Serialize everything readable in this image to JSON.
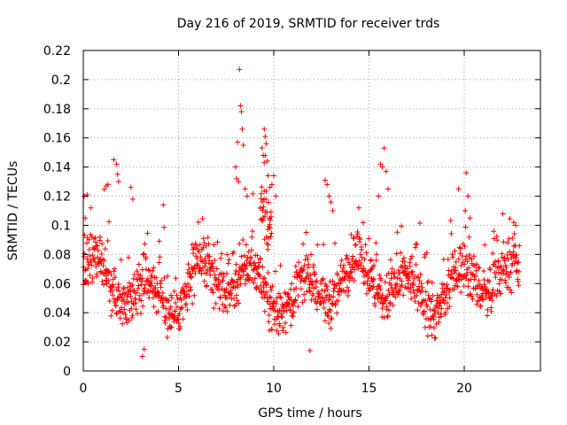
{
  "chart_data": {
    "type": "scatter",
    "title": "Day 216 of 2019, SRMTID for receiver trds",
    "xlabel": "GPS time / hours",
    "ylabel": "SRMTID / TECUs",
    "xlim": [
      0,
      24
    ],
    "ylim": [
      0,
      0.22
    ],
    "x_ticks": [
      0,
      5,
      10,
      15,
      20
    ],
    "x_tick_labels": [
      "0",
      "5",
      "10",
      "15",
      "20"
    ],
    "y_ticks": [
      0,
      0.02,
      0.04,
      0.06,
      0.08,
      0.1,
      0.12,
      0.14,
      0.16,
      0.18,
      0.2,
      0.22
    ],
    "y_tick_labels": [
      "0",
      "0.02",
      "0.04",
      "0.06",
      "0.08",
      "0.1",
      "0.12",
      "0.14",
      "0.16",
      "0.18",
      "0.2",
      "0.22"
    ],
    "grid": true,
    "marker": "+",
    "color": "#ff0000",
    "x_step_hours": 0.0167,
    "series": [
      {
        "name": "SRMTID",
        "segments": [
          {
            "x_start": 0.0,
            "x_end": 22.9,
            "mean": 0.058,
            "spread": 0.03
          },
          {
            "x_start": 9.3,
            "x_end": 9.9,
            "mean": 0.11,
            "spread": 0.03
          }
        ],
        "points": [
          {
            "x": 0.05,
            "y": 0.12
          },
          {
            "x": 0.1,
            "y": 0.105
          },
          {
            "x": 0.2,
            "y": 0.121
          },
          {
            "x": 1.6,
            "y": 0.145
          },
          {
            "x": 1.75,
            "y": 0.142
          },
          {
            "x": 1.8,
            "y": 0.135
          },
          {
            "x": 1.85,
            "y": 0.13
          },
          {
            "x": 1.2,
            "y": 0.127
          },
          {
            "x": 1.3,
            "y": 0.128
          },
          {
            "x": 2.5,
            "y": 0.126
          },
          {
            "x": 2.6,
            "y": 0.118
          },
          {
            "x": 3.1,
            "y": 0.01
          },
          {
            "x": 3.2,
            "y": 0.015
          },
          {
            "x": 4.2,
            "y": 0.114
          },
          {
            "x": 8.2,
            "y": 0.207
          },
          {
            "x": 8.25,
            "y": 0.182
          },
          {
            "x": 8.3,
            "y": 0.178
          },
          {
            "x": 8.35,
            "y": 0.166
          },
          {
            "x": 8.4,
            "y": 0.155
          },
          {
            "x": 8.1,
            "y": 0.157
          },
          {
            "x": 8.0,
            "y": 0.14
          },
          {
            "x": 8.05,
            "y": 0.132
          },
          {
            "x": 8.15,
            "y": 0.13
          },
          {
            "x": 8.5,
            "y": 0.125
          },
          {
            "x": 8.6,
            "y": 0.12
          },
          {
            "x": 9.5,
            "y": 0.166
          },
          {
            "x": 9.55,
            "y": 0.161
          },
          {
            "x": 9.6,
            "y": 0.156
          },
          {
            "x": 9.45,
            "y": 0.148
          },
          {
            "x": 9.5,
            "y": 0.143
          },
          {
            "x": 9.7,
            "y": 0.134
          },
          {
            "x": 9.8,
            "y": 0.126
          },
          {
            "x": 9.9,
            "y": 0.128
          },
          {
            "x": 10.0,
            "y": 0.134
          },
          {
            "x": 10.1,
            "y": 0.12
          },
          {
            "x": 9.3,
            "y": 0.112
          },
          {
            "x": 11.9,
            "y": 0.014
          },
          {
            "x": 12.7,
            "y": 0.131
          },
          {
            "x": 12.8,
            "y": 0.128
          },
          {
            "x": 12.9,
            "y": 0.12
          },
          {
            "x": 13.0,
            "y": 0.116
          },
          {
            "x": 13.1,
            "y": 0.11
          },
          {
            "x": 15.6,
            "y": 0.142
          },
          {
            "x": 15.7,
            "y": 0.14
          },
          {
            "x": 15.8,
            "y": 0.153
          },
          {
            "x": 15.9,
            "y": 0.137
          },
          {
            "x": 16.0,
            "y": 0.125
          },
          {
            "x": 15.5,
            "y": 0.12
          },
          {
            "x": 19.7,
            "y": 0.125
          },
          {
            "x": 20.1,
            "y": 0.136
          },
          {
            "x": 20.2,
            "y": 0.12
          },
          {
            "x": 20.05,
            "y": 0.11
          },
          {
            "x": 20.3,
            "y": 0.105
          },
          {
            "x": 22.6,
            "y": 0.102
          },
          {
            "x": 22.7,
            "y": 0.1
          }
        ]
      }
    ]
  }
}
